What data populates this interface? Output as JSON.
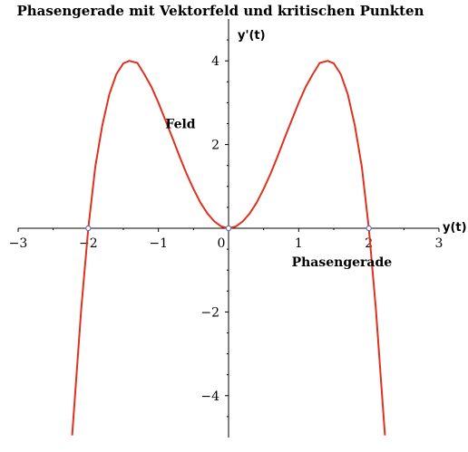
{
  "chart_data": {
    "type": "line",
    "title": "Phasengerade mit Vektorfeld und kritischen Punkten",
    "xlabel": "y(t)",
    "ylabel": "y'(t)",
    "xlim": [
      -3,
      3
    ],
    "ylim": [
      -5,
      5
    ],
    "x_ticks": [
      "−3",
      "−2",
      "−1",
      "0",
      "1",
      "2",
      "3"
    ],
    "y_ticks": [
      "−4",
      "−2",
      "2",
      "4"
    ],
    "grid": false,
    "curve_color": "#e0301e",
    "point_color": "#6b6bb5",
    "series": [
      {
        "x": [
          -2.23,
          -2.2,
          -2.1,
          -2.0,
          -1.9,
          -1.8,
          -1.7,
          -1.6,
          -1.5,
          -1.414,
          -1.3,
          -1.2,
          -1.1,
          -1.0,
          -0.9,
          -0.8,
          -0.7,
          -0.6,
          -0.5,
          -0.4,
          -0.3,
          -0.2,
          -0.1,
          0.0,
          0.1,
          0.2,
          0.3,
          0.4,
          0.5,
          0.6,
          0.7,
          0.8,
          0.9,
          1.0,
          1.1,
          1.2,
          1.3,
          1.414,
          1.5,
          1.6,
          1.7,
          1.8,
          1.9,
          2.0,
          2.1,
          2.2,
          2.23
        ],
        "y": [
          -4.95,
          -4.26,
          -1.92,
          0.0,
          1.47,
          2.46,
          3.2,
          3.68,
          3.94,
          4.0,
          3.95,
          3.68,
          3.38,
          3.0,
          2.58,
          2.16,
          1.72,
          1.31,
          0.94,
          0.61,
          0.35,
          0.16,
          0.04,
          0.0,
          0.04,
          0.16,
          0.35,
          0.61,
          0.94,
          1.31,
          1.72,
          2.16,
          2.58,
          3.0,
          3.38,
          3.68,
          3.95,
          4.0,
          3.94,
          3.68,
          3.2,
          2.46,
          1.47,
          0.0,
          -1.92,
          -4.26,
          -4.95
        ]
      }
    ],
    "critical_points": [
      {
        "x": -2,
        "y": 0
      },
      {
        "x": 0,
        "y": 0
      },
      {
        "x": 2,
        "y": 0
      }
    ],
    "annotations": [
      {
        "text": "Feld",
        "x": -0.9,
        "y": 2.5
      },
      {
        "text": "Phasengerade",
        "x": 0.9,
        "y": -0.8
      }
    ]
  }
}
